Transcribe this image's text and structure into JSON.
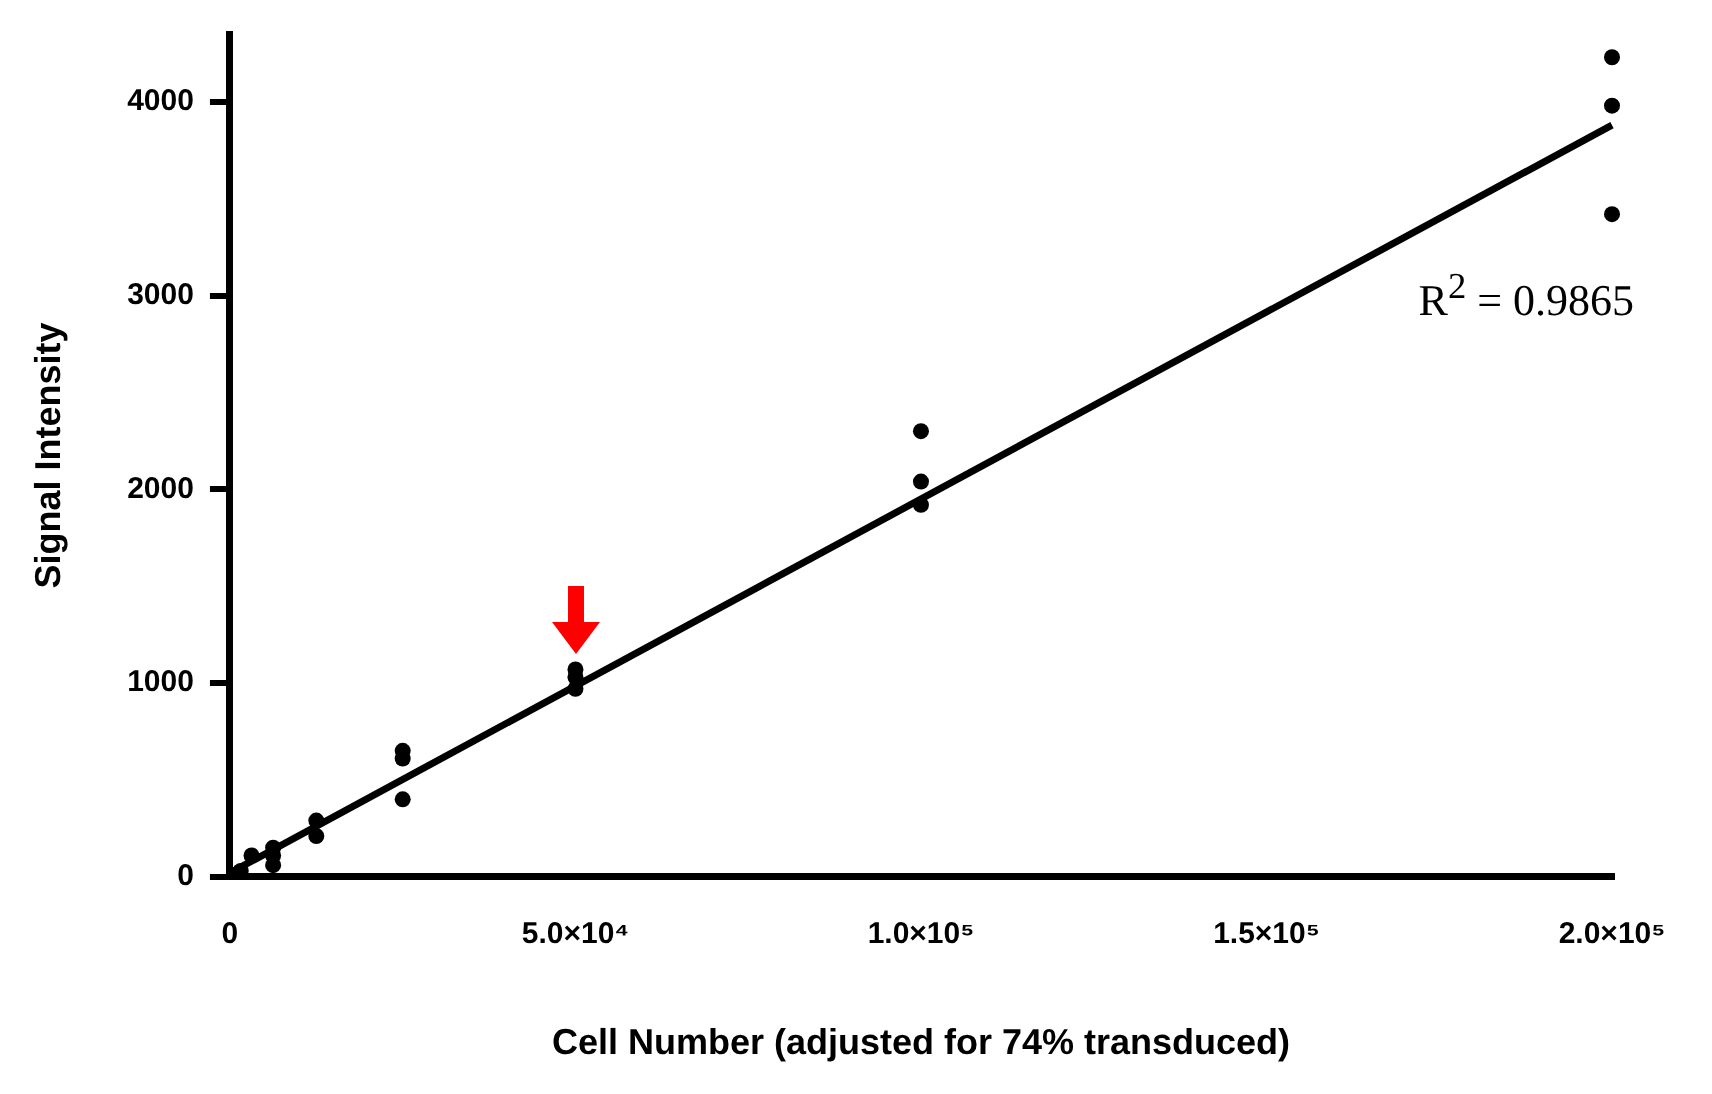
{
  "chart_data": {
    "type": "scatter",
    "xlabel": "Cell Number (adjusted for 74% transduced)",
    "ylabel": "Signal Intensity",
    "xlim": [
      0,
      200000
    ],
    "xticks": [
      {
        "value": 0,
        "label": "0"
      },
      {
        "value": 50000,
        "label": "5.0×10⁴"
      },
      {
        "value": 100000,
        "label": "1.0×10⁵"
      },
      {
        "value": 150000,
        "label": "1.5×10⁵"
      },
      {
        "value": 200000,
        "label": "2.0×10⁵"
      }
    ],
    "ylim": [
      0,
      4350
    ],
    "yticks": [
      0,
      1000,
      2000,
      3000,
      4000
    ],
    "grid": false,
    "legend": false,
    "marker": "circle",
    "annotations": [
      "R$^{2}$ = 0.9865"
    ],
    "series": [
      {
        "type": "scatter",
        "color": "#000000",
        "x": [
          1562,
          3125,
          6250,
          6250,
          6250,
          12500,
          12500,
          25000,
          25000,
          25000,
          50000,
          50000,
          50000,
          100000,
          100000,
          100000,
          200000,
          200000,
          200000
        ],
        "values": [
          30,
          110,
          150,
          110,
          60,
          290,
          210,
          650,
          610,
          400,
          1070,
          1030,
          970,
          2300,
          2040,
          1920,
          4230,
          3980,
          3420
        ]
      },
      {
        "type": "line",
        "color": "#000000",
        "line_style": "solid",
        "marker": "none",
        "x": [
          0,
          200000
        ],
        "values": [
          20,
          3880
        ]
      }
    ]
  }
}
